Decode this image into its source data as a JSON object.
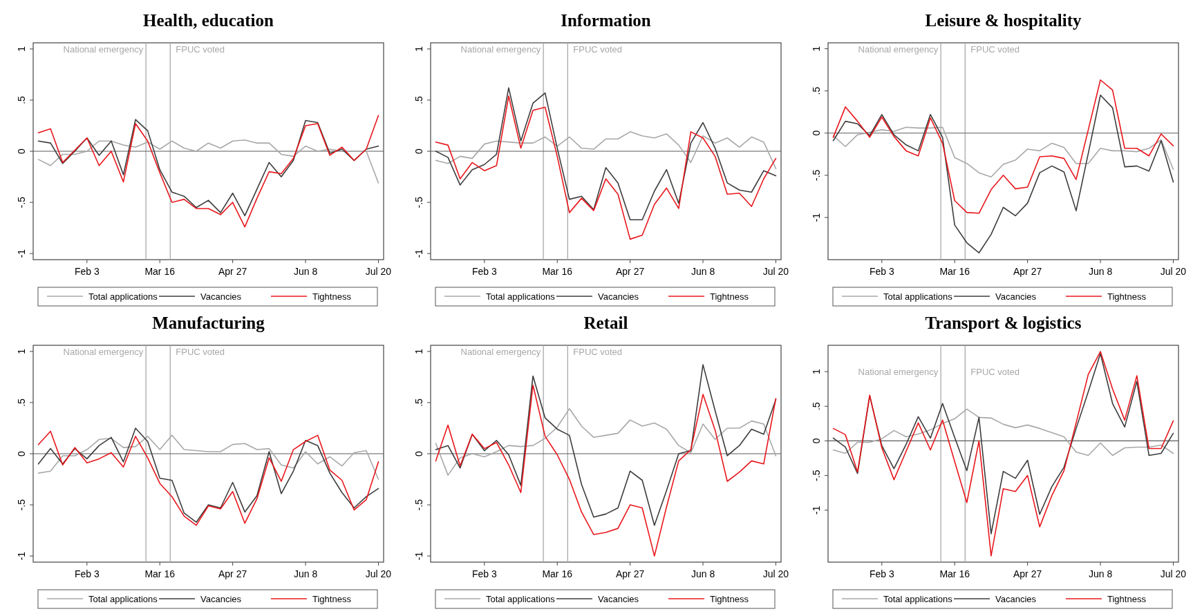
{
  "chart_data": [
    {
      "type": "line",
      "title": "Health, education",
      "x": [
        "--01-06",
        "--01-13",
        "--01-20",
        "--01-27",
        "--02-03",
        "--02-10",
        "--02-17",
        "--02-24",
        "--03-02",
        "--03-09",
        "--03-16",
        "--03-23",
        "--03-30",
        "--04-06",
        "--04-13",
        "--04-20",
        "--04-27",
        "--05-04",
        "--05-11",
        "--05-18",
        "--05-25",
        "--06-01",
        "--06-08",
        "--06-15",
        "--06-22",
        "--06-29",
        "--07-06",
        "--07-13",
        "--07-20"
      ],
      "xlim": [
        "--01-03",
        "--07-23"
      ],
      "xticks": [
        {
          "value": "--02-03",
          "label": "Feb 3"
        },
        {
          "value": "--03-16",
          "label": "Mar 16"
        },
        {
          "value": "--04-27",
          "label": "Apr 27"
        },
        {
          "value": "--06-08",
          "label": "Jun 8"
        },
        {
          "value": "--07-20",
          "label": "Jul 20"
        }
      ],
      "ylim": [
        -1.06,
        1.06
      ],
      "yticks": [
        {
          "value": -1,
          "label": "-1"
        },
        {
          "value": -0.5,
          "label": "-.5"
        },
        {
          "value": 0,
          "label": "0"
        },
        {
          "value": 0.5,
          "label": ".5"
        },
        {
          "value": 1,
          "label": "1"
        }
      ],
      "legend": "bottom",
      "ref_lines": [
        {
          "axis": "x",
          "value": "--03-08",
          "label": "National emergency",
          "color": "#a8a8a8"
        },
        {
          "axis": "x",
          "value": "--03-22",
          "label": "FPUC voted",
          "color": "#a8a8a8"
        },
        {
          "axis": "y",
          "value": 0,
          "color": "#5a5a5a"
        }
      ],
      "series": [
        {
          "name": "Total applications",
          "color": "#a8a8a8",
          "values": [
            -0.08,
            -0.14,
            -0.03,
            -0.03,
            0.0,
            0.1,
            0.1,
            0.06,
            0.04,
            0.09,
            0.02,
            0.1,
            0.03,
            0.0,
            0.08,
            0.03,
            0.1,
            0.11,
            0.08,
            0.08,
            -0.03,
            -0.05,
            0.05,
            0.0,
            0.02,
            0.0,
            0.0,
            0.0,
            -0.31
          ]
        },
        {
          "name": "Vacancies",
          "color": "#3c3c3c",
          "values": [
            0.1,
            0.08,
            -0.12,
            0.0,
            0.13,
            -0.04,
            0.1,
            -0.23,
            0.31,
            0.2,
            -0.18,
            -0.4,
            -0.44,
            -0.55,
            -0.48,
            -0.6,
            -0.41,
            -0.63,
            -0.37,
            -0.11,
            -0.25,
            -0.09,
            0.3,
            0.28,
            -0.02,
            0.02,
            -0.09,
            0.02,
            0.05
          ]
        },
        {
          "name": "Tightness",
          "color": "#e8161b",
          "values": [
            0.18,
            0.22,
            -0.11,
            0.01,
            0.13,
            -0.14,
            0.0,
            -0.3,
            0.27,
            0.1,
            -0.21,
            -0.5,
            -0.47,
            -0.56,
            -0.56,
            -0.62,
            -0.5,
            -0.74,
            -0.46,
            -0.2,
            -0.22,
            -0.07,
            0.25,
            0.27,
            -0.04,
            0.04,
            -0.09,
            0.02,
            0.35
          ]
        }
      ]
    },
    {
      "type": "line",
      "title": "Information",
      "x": [
        "--01-06",
        "--01-13",
        "--01-20",
        "--01-27",
        "--02-03",
        "--02-10",
        "--02-17",
        "--02-24",
        "--03-02",
        "--03-09",
        "--03-16",
        "--03-23",
        "--03-30",
        "--04-06",
        "--04-13",
        "--04-20",
        "--04-27",
        "--05-04",
        "--05-11",
        "--05-18",
        "--05-25",
        "--06-01",
        "--06-08",
        "--06-15",
        "--06-22",
        "--06-29",
        "--07-06",
        "--07-13",
        "--07-20"
      ],
      "xlim": [
        "--01-03",
        "--07-23"
      ],
      "xticks": [
        {
          "value": "--02-03",
          "label": "Feb 3"
        },
        {
          "value": "--03-16",
          "label": "Mar 16"
        },
        {
          "value": "--04-27",
          "label": "Apr 27"
        },
        {
          "value": "--06-08",
          "label": "Jun 8"
        },
        {
          "value": "--07-20",
          "label": "Jul 20"
        }
      ],
      "ylim": [
        -1.06,
        1.06
      ],
      "yticks": [
        {
          "value": -1,
          "label": "-1"
        },
        {
          "value": -0.5,
          "label": "-.5"
        },
        {
          "value": 0,
          "label": "0"
        },
        {
          "value": 0.5,
          "label": ".5"
        },
        {
          "value": 1,
          "label": "1"
        }
      ],
      "legend": "bottom",
      "ref_lines": [
        {
          "axis": "x",
          "value": "--03-08",
          "label": "National emergency",
          "color": "#a8a8a8"
        },
        {
          "axis": "x",
          "value": "--03-22",
          "label": "FPUC voted",
          "color": "#a8a8a8"
        },
        {
          "axis": "y",
          "value": 0,
          "color": "#5a5a5a"
        }
      ],
      "series": [
        {
          "name": "Total applications",
          "color": "#a8a8a8",
          "values": [
            -0.09,
            -0.12,
            -0.05,
            -0.07,
            0.07,
            0.1,
            0.09,
            0.08,
            0.08,
            0.14,
            0.05,
            0.14,
            0.03,
            0.02,
            0.12,
            0.12,
            0.19,
            0.15,
            0.13,
            0.17,
            0.06,
            -0.11,
            0.15,
            0.08,
            0.13,
            0.04,
            0.14,
            0.09,
            -0.17
          ]
        },
        {
          "name": "Vacancies",
          "color": "#3c3c3c",
          "values": [
            0.0,
            -0.06,
            -0.33,
            -0.18,
            -0.13,
            -0.03,
            0.62,
            0.1,
            0.47,
            0.57,
            0.03,
            -0.47,
            -0.44,
            -0.57,
            -0.16,
            -0.31,
            -0.67,
            -0.67,
            -0.39,
            -0.18,
            -0.51,
            0.08,
            0.28,
            0.03,
            -0.31,
            -0.38,
            -0.4,
            -0.19,
            -0.24
          ]
        },
        {
          "name": "Tightness",
          "color": "#e8161b",
          "values": [
            0.09,
            0.06,
            -0.27,
            -0.11,
            -0.19,
            -0.14,
            0.54,
            0.03,
            0.4,
            0.43,
            -0.05,
            -0.6,
            -0.46,
            -0.58,
            -0.27,
            -0.42,
            -0.86,
            -0.82,
            -0.52,
            -0.36,
            -0.56,
            0.19,
            0.13,
            -0.05,
            -0.42,
            -0.41,
            -0.54,
            -0.27,
            -0.07
          ]
        }
      ]
    },
    {
      "type": "line",
      "title": "Leisure & hospitality",
      "x": [
        "--01-06",
        "--01-13",
        "--01-20",
        "--01-27",
        "--02-03",
        "--02-10",
        "--02-17",
        "--02-24",
        "--03-02",
        "--03-09",
        "--03-16",
        "--03-23",
        "--03-30",
        "--04-06",
        "--04-13",
        "--04-20",
        "--04-27",
        "--05-04",
        "--05-11",
        "--05-18",
        "--05-25",
        "--06-01",
        "--06-08",
        "--06-15",
        "--06-22",
        "--06-29",
        "--07-06",
        "--07-13",
        "--07-20"
      ],
      "xlim": [
        "--01-03",
        "--07-23"
      ],
      "xticks": [
        {
          "value": "--02-03",
          "label": "Feb 3"
        },
        {
          "value": "--03-16",
          "label": "Mar 16"
        },
        {
          "value": "--04-27",
          "label": "Apr 27"
        },
        {
          "value": "--06-08",
          "label": "Jun 8"
        },
        {
          "value": "--07-20",
          "label": "Jul 20"
        }
      ],
      "ylim": [
        -1.5,
        1.07
      ],
      "yticks": [
        {
          "value": -1,
          "label": "-1"
        },
        {
          "value": -0.5,
          "label": "-.5"
        },
        {
          "value": 0,
          "label": "0"
        },
        {
          "value": 0.5,
          "label": ".5"
        },
        {
          "value": 1,
          "label": "1"
        }
      ],
      "legend": "bottom",
      "ref_lines": [
        {
          "axis": "x",
          "value": "--03-08",
          "label": "National emergency",
          "color": "#a8a8a8"
        },
        {
          "axis": "x",
          "value": "--03-22",
          "label": "FPUC voted",
          "color": "#a8a8a8"
        },
        {
          "axis": "y",
          "value": 0,
          "color": "#5a5a5a"
        }
      ],
      "series": [
        {
          "name": "Total applications",
          "color": "#a8a8a8",
          "values": [
            -0.03,
            -0.16,
            -0.02,
            0.01,
            0.04,
            0.02,
            0.07,
            0.06,
            0.06,
            0.07,
            -0.29,
            -0.36,
            -0.47,
            -0.52,
            -0.37,
            -0.32,
            -0.19,
            -0.21,
            -0.12,
            -0.17,
            -0.36,
            -0.36,
            -0.18,
            -0.21,
            -0.21,
            -0.22,
            -0.18,
            -0.08,
            -0.43
          ]
        },
        {
          "name": "Vacancies",
          "color": "#3c3c3c",
          "values": [
            -0.09,
            0.14,
            0.11,
            -0.03,
            0.22,
            -0.02,
            -0.14,
            -0.21,
            0.22,
            -0.05,
            -1.09,
            -1.3,
            -1.42,
            -1.2,
            -0.88,
            -0.98,
            -0.83,
            -0.47,
            -0.39,
            -0.46,
            -0.92,
            -0.24,
            0.45,
            0.3,
            -0.4,
            -0.39,
            -0.45,
            -0.09,
            -0.58
          ]
        },
        {
          "name": "Tightness",
          "color": "#e8161b",
          "values": [
            -0.05,
            0.31,
            0.14,
            -0.05,
            0.19,
            -0.04,
            -0.21,
            -0.27,
            0.18,
            -0.12,
            -0.8,
            -0.94,
            -0.95,
            -0.67,
            -0.5,
            -0.66,
            -0.64,
            -0.28,
            -0.27,
            -0.3,
            -0.55,
            0.04,
            0.63,
            0.51,
            -0.18,
            -0.18,
            -0.27,
            -0.01,
            -0.15
          ]
        }
      ]
    },
    {
      "type": "line",
      "title": "Manufacturing",
      "x": [
        "--01-06",
        "--01-13",
        "--01-20",
        "--01-27",
        "--02-03",
        "--02-10",
        "--02-17",
        "--02-24",
        "--03-02",
        "--03-09",
        "--03-16",
        "--03-23",
        "--03-30",
        "--04-06",
        "--04-13",
        "--04-20",
        "--04-27",
        "--05-04",
        "--05-11",
        "--05-18",
        "--05-25",
        "--06-01",
        "--06-08",
        "--06-15",
        "--06-22",
        "--06-29",
        "--07-06",
        "--07-13",
        "--07-20"
      ],
      "xlim": [
        "--01-03",
        "--07-23"
      ],
      "xticks": [
        {
          "value": "--02-03",
          "label": "Feb 3"
        },
        {
          "value": "--03-16",
          "label": "Mar 16"
        },
        {
          "value": "--04-27",
          "label": "Apr 27"
        },
        {
          "value": "--06-08",
          "label": "Jun 8"
        },
        {
          "value": "--07-20",
          "label": "Jul 20"
        }
      ],
      "ylim": [
        -1.06,
        1.06
      ],
      "yticks": [
        {
          "value": -1,
          "label": "-1"
        },
        {
          "value": -0.5,
          "label": "-.5"
        },
        {
          "value": 0,
          "label": "0"
        },
        {
          "value": 0.5,
          "label": ".5"
        },
        {
          "value": 1,
          "label": "1"
        }
      ],
      "legend": "bottom",
      "ref_lines": [
        {
          "axis": "x",
          "value": "--03-08",
          "label": "National emergency",
          "color": "#a8a8a8"
        },
        {
          "axis": "x",
          "value": "--03-22",
          "label": "FPUC voted",
          "color": "#a8a8a8"
        },
        {
          "axis": "y",
          "value": 0,
          "color": "#5a5a5a"
        }
      ],
      "series": [
        {
          "name": "Total applications",
          "color": "#a8a8a8",
          "values": [
            -0.19,
            -0.17,
            -0.02,
            -0.02,
            0.04,
            0.14,
            0.15,
            0.06,
            0.07,
            0.17,
            0.04,
            0.18,
            0.04,
            0.03,
            0.02,
            0.02,
            0.09,
            0.1,
            0.04,
            0.05,
            -0.11,
            -0.14,
            0.02,
            -0.1,
            -0.03,
            -0.12,
            0.01,
            0.03,
            -0.25
          ]
        },
        {
          "name": "Vacancies",
          "color": "#3c3c3c",
          "values": [
            -0.1,
            0.05,
            -0.1,
            0.05,
            -0.05,
            0.08,
            0.16,
            -0.08,
            0.25,
            0.12,
            -0.24,
            -0.26,
            -0.58,
            -0.67,
            -0.5,
            -0.53,
            -0.28,
            -0.57,
            -0.41,
            0.02,
            -0.39,
            -0.17,
            0.13,
            0.08,
            -0.19,
            -0.38,
            -0.53,
            -0.42,
            -0.34
          ]
        },
        {
          "name": "Tightness",
          "color": "#e8161b",
          "values": [
            0.09,
            0.22,
            -0.11,
            0.06,
            -0.09,
            -0.05,
            0.01,
            -0.13,
            0.17,
            -0.04,
            -0.29,
            -0.42,
            -0.61,
            -0.7,
            -0.51,
            -0.54,
            -0.37,
            -0.68,
            -0.44,
            -0.04,
            -0.27,
            0.04,
            0.12,
            0.18,
            -0.16,
            -0.26,
            -0.55,
            -0.45,
            -0.08
          ]
        }
      ]
    },
    {
      "type": "line",
      "title": "Retail",
      "x": [
        "--01-06",
        "--01-13",
        "--01-20",
        "--01-27",
        "--02-03",
        "--02-10",
        "--02-17",
        "--02-24",
        "--03-02",
        "--03-09",
        "--03-16",
        "--03-23",
        "--03-30",
        "--04-06",
        "--04-13",
        "--04-20",
        "--04-27",
        "--05-04",
        "--05-11",
        "--05-18",
        "--05-25",
        "--06-01",
        "--06-08",
        "--06-15",
        "--06-22",
        "--06-29",
        "--07-06",
        "--07-13",
        "--07-20"
      ],
      "xlim": [
        "--01-03",
        "--07-23"
      ],
      "xticks": [
        {
          "value": "--02-03",
          "label": "Feb 3"
        },
        {
          "value": "--03-16",
          "label": "Mar 16"
        },
        {
          "value": "--04-27",
          "label": "Apr 27"
        },
        {
          "value": "--06-08",
          "label": "Jun 8"
        },
        {
          "value": "--07-20",
          "label": "Jul 20"
        }
      ],
      "ylim": [
        -1.06,
        1.06
      ],
      "yticks": [
        {
          "value": -1,
          "label": "-1"
        },
        {
          "value": -0.5,
          "label": "-.5"
        },
        {
          "value": 0,
          "label": "0"
        },
        {
          "value": 0.5,
          "label": ".5"
        },
        {
          "value": 1,
          "label": "1"
        }
      ],
      "legend": "bottom",
      "ref_lines": [
        {
          "axis": "x",
          "value": "--03-08",
          "label": "National emergency",
          "color": "#a8a8a8"
        },
        {
          "axis": "x",
          "value": "--03-22",
          "label": "FPUC voted",
          "color": "#a8a8a8"
        },
        {
          "axis": "y",
          "value": 0,
          "color": "#5a5a5a"
        }
      ],
      "series": [
        {
          "name": "Total applications",
          "color": "#a8a8a8",
          "values": [
            0.1,
            -0.21,
            -0.04,
            0.0,
            -0.03,
            0.02,
            0.08,
            0.07,
            0.08,
            0.15,
            0.26,
            0.44,
            0.27,
            0.16,
            0.18,
            0.2,
            0.33,
            0.27,
            0.3,
            0.24,
            0.08,
            0.01,
            0.29,
            0.14,
            0.25,
            0.25,
            0.32,
            0.29,
            -0.02
          ]
        },
        {
          "name": "Vacancies",
          "color": "#3c3c3c",
          "values": [
            0.04,
            0.08,
            -0.14,
            0.19,
            0.03,
            0.13,
            -0.01,
            -0.31,
            0.76,
            0.35,
            0.24,
            0.18,
            -0.3,
            -0.62,
            -0.59,
            -0.53,
            -0.17,
            -0.26,
            -0.7,
            -0.36,
            0.0,
            0.03,
            0.87,
            0.42,
            -0.02,
            0.08,
            0.24,
            0.19,
            0.53
          ]
        },
        {
          "name": "Tightness",
          "color": "#e8161b",
          "values": [
            -0.07,
            0.28,
            -0.12,
            0.19,
            0.05,
            0.11,
            -0.11,
            -0.38,
            0.67,
            0.17,
            -0.01,
            -0.25,
            -0.57,
            -0.79,
            -0.77,
            -0.73,
            -0.5,
            -0.53,
            -1.0,
            -0.52,
            -0.07,
            0.04,
            0.58,
            0.23,
            -0.27,
            -0.18,
            -0.07,
            -0.1,
            0.54
          ]
        }
      ]
    },
    {
      "type": "line",
      "title": "Transport & logistics",
      "x": [
        "--01-06",
        "--01-13",
        "--01-20",
        "--01-27",
        "--02-03",
        "--02-10",
        "--02-17",
        "--02-24",
        "--03-02",
        "--03-09",
        "--03-16",
        "--03-23",
        "--03-30",
        "--04-06",
        "--04-13",
        "--04-20",
        "--04-27",
        "--05-04",
        "--05-11",
        "--05-18",
        "--05-25",
        "--06-01",
        "--06-08",
        "--06-15",
        "--06-22",
        "--06-29",
        "--07-06",
        "--07-13",
        "--07-20"
      ],
      "xlim": [
        "--01-03",
        "--07-23"
      ],
      "xticks": [
        {
          "value": "--02-03",
          "label": "Feb 3"
        },
        {
          "value": "--03-16",
          "label": "Mar 16"
        },
        {
          "value": "--04-27",
          "label": "Apr 27"
        },
        {
          "value": "--06-08",
          "label": "Jun 8"
        },
        {
          "value": "--07-20",
          "label": "Jul 20"
        }
      ],
      "ylim": [
        -1.75,
        1.38
      ],
      "yticks": [
        {
          "value": -1,
          "label": "-1"
        },
        {
          "value": -0.5,
          "label": "-.5"
        },
        {
          "value": 0,
          "label": "0"
        },
        {
          "value": 0.5,
          "label": ".5"
        },
        {
          "value": 1,
          "label": "1"
        }
      ],
      "legend": "bottom",
      "ref_lines": [
        {
          "axis": "x",
          "value": "--03-08",
          "label": "National emergency",
          "color": "#a8a8a8"
        },
        {
          "axis": "x",
          "value": "--03-22",
          "label": "FPUC voted",
          "color": "#a8a8a8"
        },
        {
          "axis": "y",
          "value": 0,
          "color": "#5a5a5a"
        }
      ],
      "series": [
        {
          "name": "Total applications",
          "color": "#a8a8a8",
          "values": [
            -0.13,
            -0.18,
            -0.02,
            -0.02,
            0.03,
            0.15,
            0.06,
            0.1,
            0.16,
            0.25,
            0.32,
            0.46,
            0.34,
            0.33,
            0.24,
            0.19,
            0.23,
            0.18,
            0.12,
            0.06,
            -0.16,
            -0.21,
            -0.03,
            -0.21,
            -0.1,
            -0.09,
            -0.09,
            -0.06,
            -0.18
          ]
        },
        {
          "name": "Vacancies",
          "color": "#3c3c3c",
          "values": [
            0.04,
            -0.09,
            -0.47,
            0.65,
            -0.07,
            -0.4,
            -0.05,
            0.35,
            0.04,
            0.54,
            0.05,
            -0.43,
            0.34,
            -1.34,
            -0.44,
            -0.54,
            -0.28,
            -1.06,
            -0.66,
            -0.38,
            0.18,
            0.71,
            1.26,
            0.54,
            0.2,
            0.86,
            -0.21,
            -0.18,
            0.11
          ]
        },
        {
          "name": "Tightness",
          "color": "#e8161b",
          "values": [
            0.18,
            0.09,
            -0.45,
            0.66,
            -0.1,
            -0.56,
            -0.15,
            0.26,
            -0.13,
            0.3,
            -0.3,
            -0.89,
            0.0,
            -1.66,
            -0.69,
            -0.73,
            -0.5,
            -1.24,
            -0.79,
            -0.43,
            0.26,
            0.96,
            1.29,
            0.75,
            0.3,
            0.94,
            -0.11,
            -0.11,
            0.29
          ]
        }
      ]
    }
  ]
}
